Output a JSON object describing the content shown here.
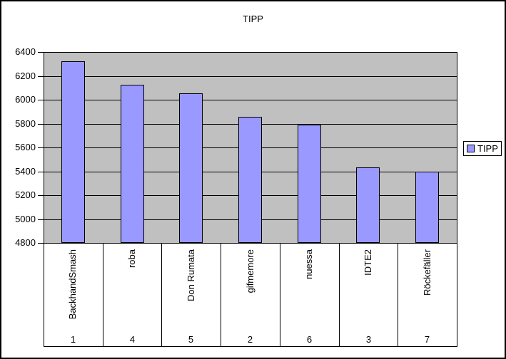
{
  "title": "TIPP",
  "legend": {
    "label": "TIPP"
  },
  "colors": {
    "background": "#ffffff",
    "plot_bg": "#c0c0c0",
    "bar_fill": "#9999ff",
    "bar_border": "#000000",
    "grid_line": "#000000",
    "text": "#000000"
  },
  "y_axis": {
    "tick_labels": [
      "6400",
      "6200",
      "6000",
      "5800",
      "5600",
      "5400",
      "5200",
      "5000",
      "4800"
    ]
  },
  "chart_data": {
    "type": "bar",
    "title": "TIPP",
    "categories": [
      "BackhandSmash",
      "roba",
      "Don Rumata",
      "gifmemore",
      "nuessa",
      "IDTE2",
      "Röckefäller"
    ],
    "category_group_labels": [
      "1",
      "4",
      "5",
      "2",
      "6",
      "3",
      "7"
    ],
    "series": [
      {
        "name": "TIPP",
        "values": [
          6320,
          6125,
          6055,
          5855,
          5790,
          5430,
          5400
        ]
      }
    ],
    "ylim": [
      4800,
      6400
    ],
    "y_tick_step": 200,
    "grid": true,
    "legend_position": "right",
    "plot_background": "#c0c0c0",
    "bar_color": "#9999ff"
  }
}
